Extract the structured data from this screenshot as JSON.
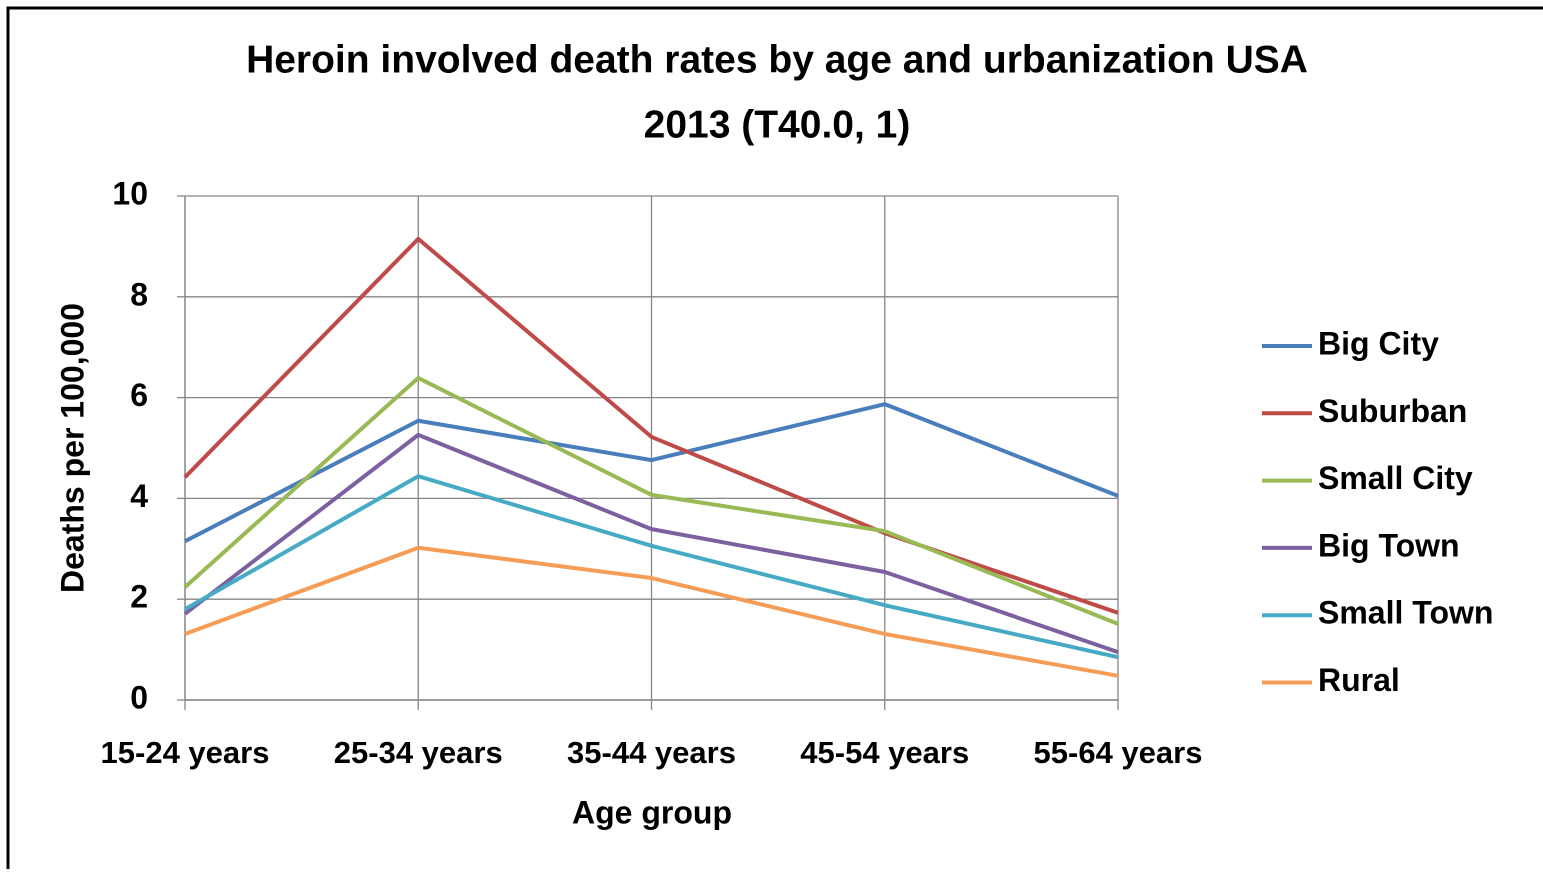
{
  "chart_data": {
    "type": "line",
    "title": [
      "Heroin involved death rates by age and urbanization USA",
      "2013 (T40.0, 1)"
    ],
    "x_label": "Age group",
    "y_label": "Deaths per 100,000",
    "categories": [
      "15-24 years",
      "25-34 years",
      "35-44 years",
      "45-54 years",
      "55-64 years"
    ],
    "series": [
      {
        "name": "Big City",
        "color": "#4a7ebb",
        "values": [
          3.15,
          5.54,
          4.76,
          5.87,
          4.05
        ]
      },
      {
        "name": "Suburban",
        "color": "#be4b48",
        "values": [
          4.42,
          9.15,
          5.22,
          3.31,
          1.73
        ]
      },
      {
        "name": "Small City",
        "color": "#98b954",
        "values": [
          2.24,
          6.39,
          4.07,
          3.35,
          1.51
        ]
      },
      {
        "name": "Big Town",
        "color": "#7d60a0",
        "values": [
          1.71,
          5.26,
          3.39,
          2.54,
          0.95
        ]
      },
      {
        "name": "Small Town",
        "color": "#46aac5",
        "values": [
          1.8,
          4.44,
          3.06,
          1.88,
          0.85
        ]
      },
      {
        "name": "Rural",
        "color": "#f59d56",
        "values": [
          1.31,
          3.02,
          2.42,
          1.31,
          0.48
        ]
      }
    ],
    "ylim": [
      0,
      10
    ],
    "yticks": [
      0,
      2,
      4,
      6,
      8,
      10
    ],
    "grid": true,
    "legend": "right"
  }
}
